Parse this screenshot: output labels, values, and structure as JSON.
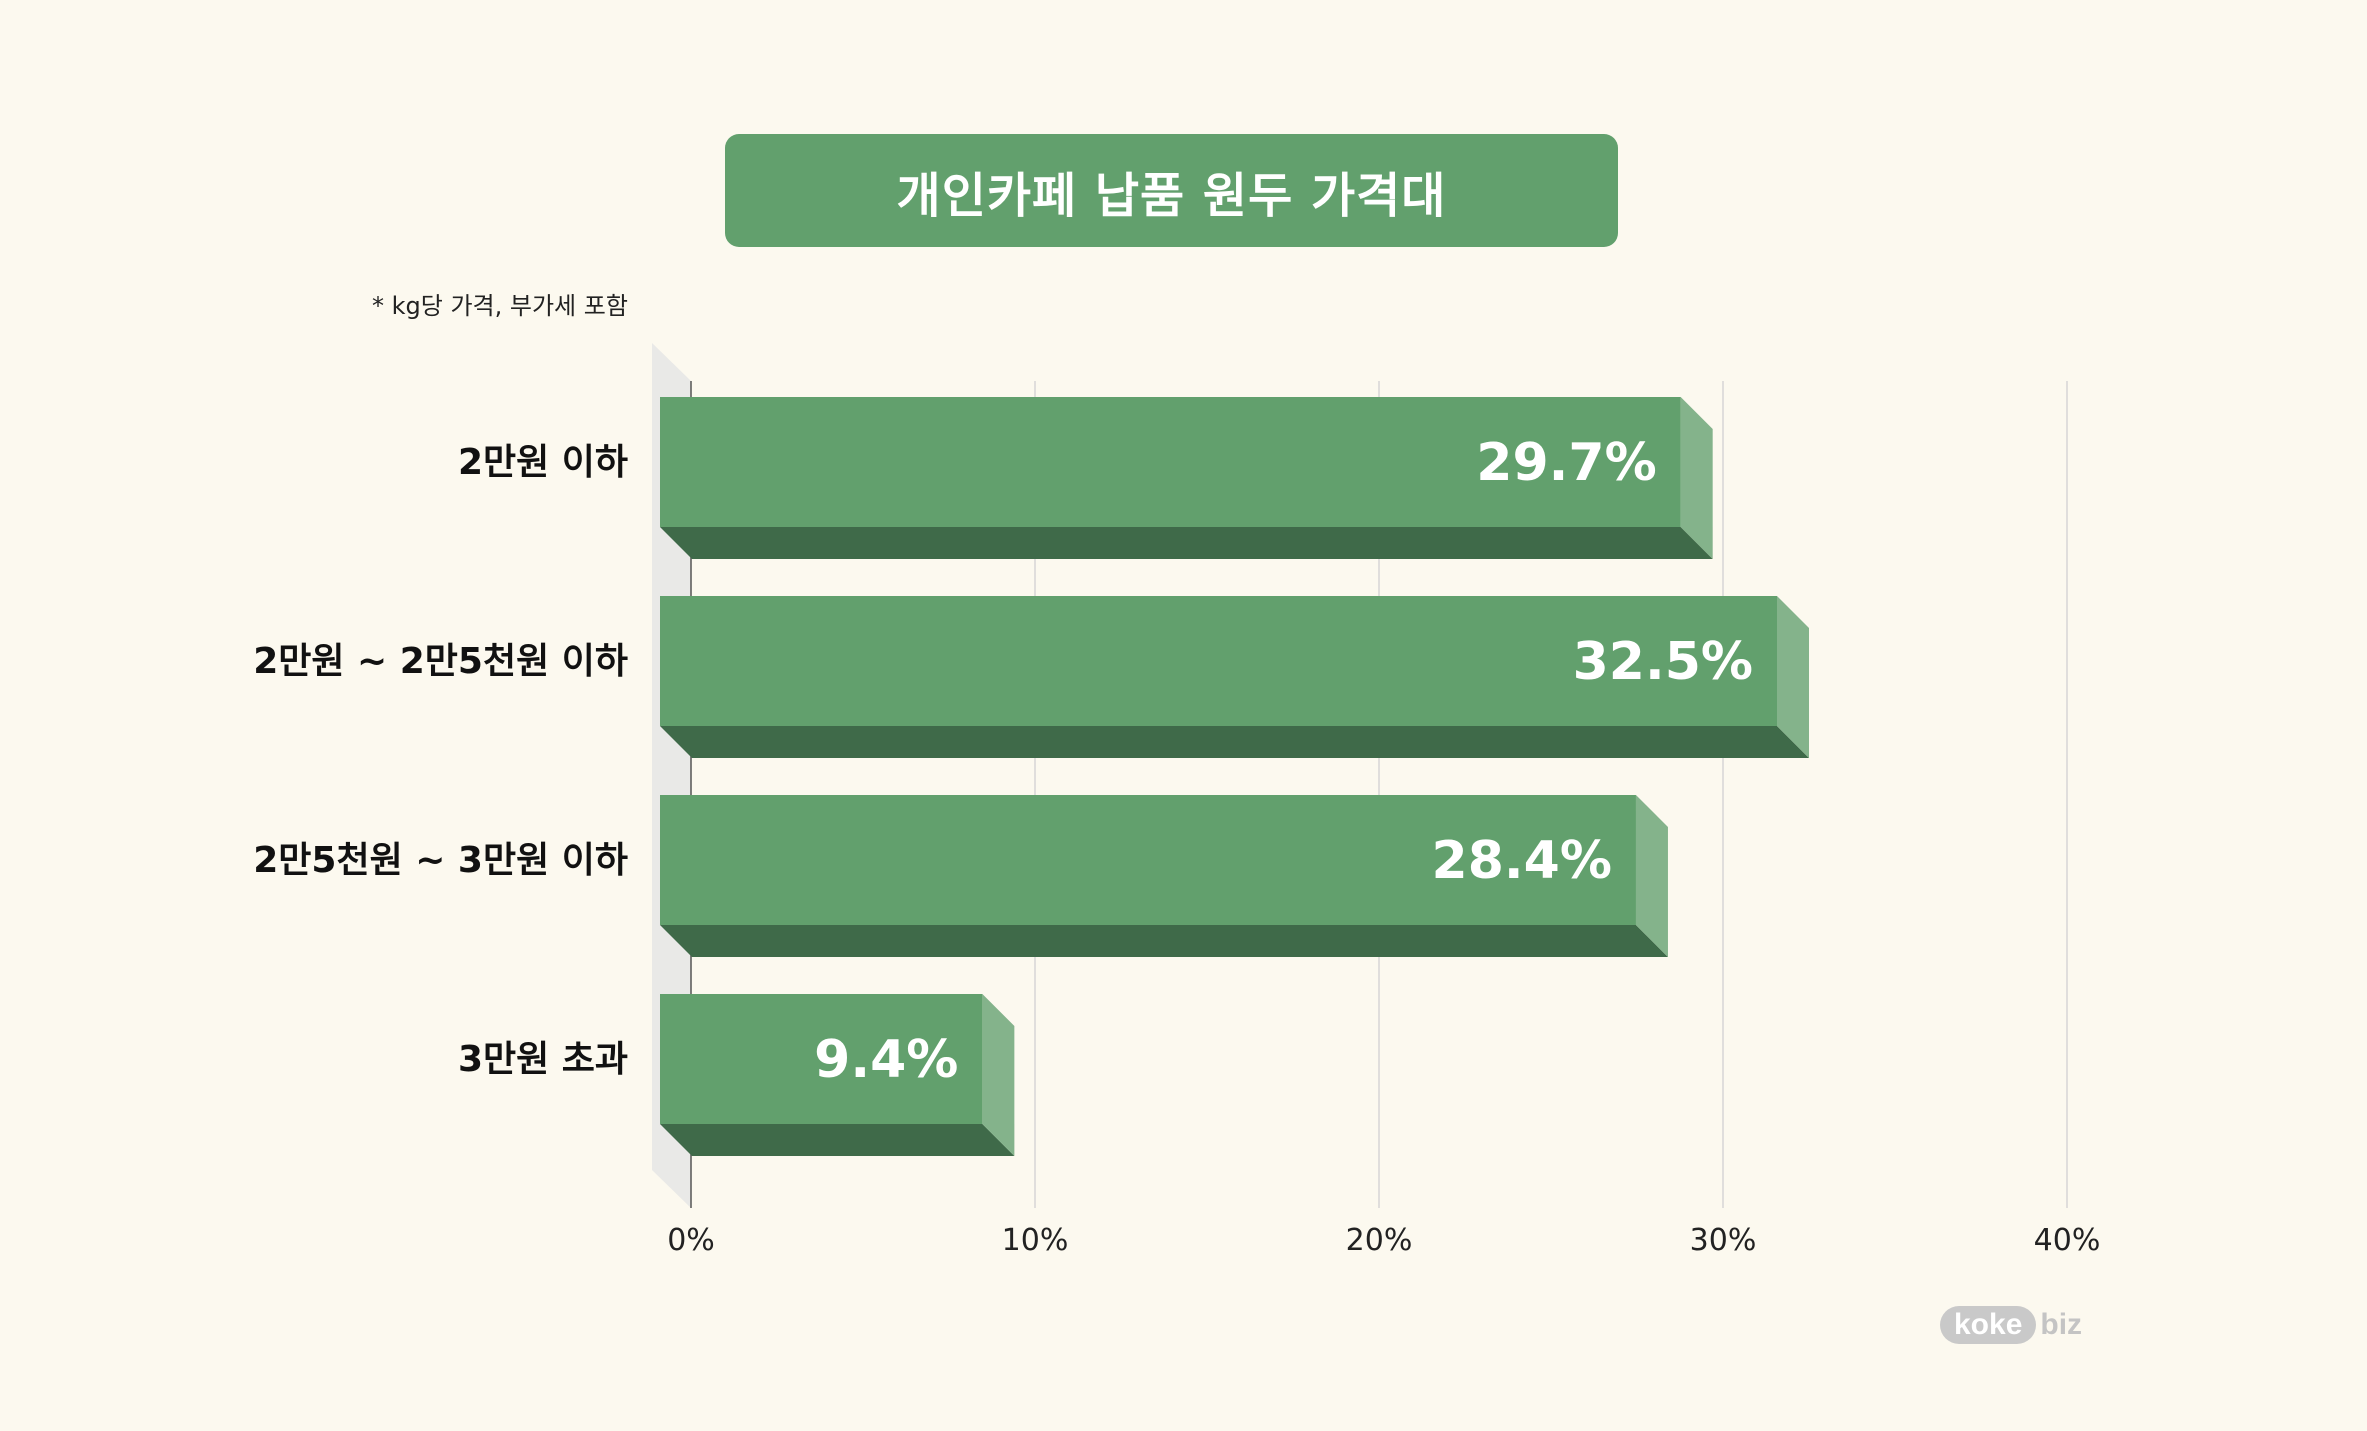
{
  "header": {
    "title": "개인카페 납품 원두 가격대",
    "note": "* kg당 가격, 부가세 포함"
  },
  "brand": {
    "part1": "koke",
    "part2": "biz"
  },
  "colors": {
    "bar_front": "#62a06d",
    "bar_bottom": "#3f6a49",
    "bar_side": "#84b38b",
    "background": "#fcf9ef",
    "grid": "#d6d6d6"
  },
  "chart_data": {
    "type": "bar",
    "orientation": "horizontal",
    "categories": [
      "2만원 이하",
      "2만원 ~ 2만5천원 이하",
      "2만5천원 ~ 3만원 이하",
      "3만원 초과"
    ],
    "values": [
      29.7,
      32.5,
      28.4,
      9.4
    ],
    "value_labels": [
      "29.7%",
      "32.5%",
      "28.4%",
      "9.4%"
    ],
    "xlim": [
      0,
      40
    ],
    "xticks": [
      0,
      10,
      20,
      30,
      40
    ],
    "xtick_labels": [
      "0%",
      "10%",
      "20%",
      "30%",
      "40%"
    ],
    "grid": true
  }
}
